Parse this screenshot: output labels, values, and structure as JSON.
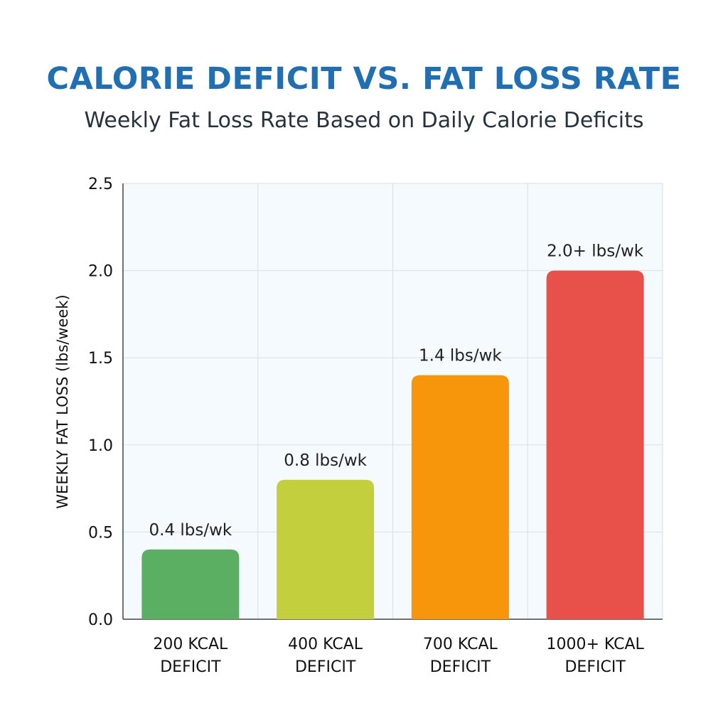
{
  "chart_data": {
    "type": "bar",
    "title": "CALORIE DEFICIT VS. FAT LOSS RATE",
    "subtitle": "Weekly Fat Loss Rate Based on Daily Calorie Deficits",
    "ylabel": "WEEKLY FAT LOSS (lbs/week)",
    "xlabel": "",
    "ylim": [
      0,
      2.5
    ],
    "yticks": [
      "0.0",
      "0.5",
      "1.0",
      "1.5",
      "2.0",
      "2.5"
    ],
    "categories": [
      [
        "200 KCAL",
        "DEFICIT"
      ],
      [
        "400 KCAL",
        "DEFICIT"
      ],
      [
        "700 KCAL",
        "DEFICIT"
      ],
      [
        "1000+ KCAL",
        "DEFICIT"
      ]
    ],
    "values": [
      0.4,
      0.8,
      1.4,
      2.0
    ],
    "data_labels": [
      "0.4 lbs/wk",
      "0.8 lbs/wk",
      "1.4 lbs/wk",
      "2.0+ lbs/wk"
    ],
    "colors": [
      "#5aaf62",
      "#c3cf3c",
      "#f7960b",
      "#e8504a"
    ],
    "grid": true,
    "legend": "none"
  }
}
